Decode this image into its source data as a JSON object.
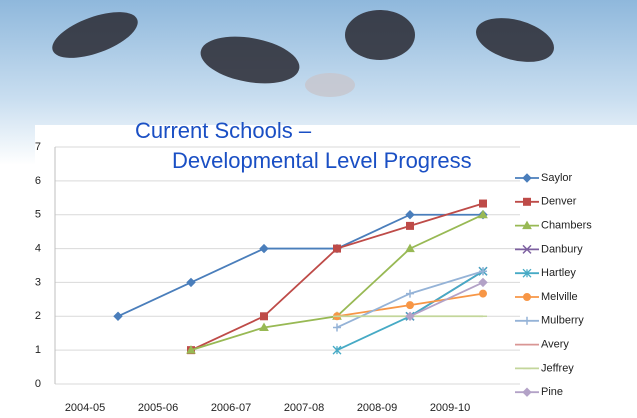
{
  "chart_data": {
    "type": "line",
    "title": [
      "Current Schools –",
      "Developmental Level Progress"
    ],
    "categories": [
      "2004-05",
      "2005-06",
      "2006-07",
      "2007-08",
      "2008-09",
      "2009-10"
    ],
    "ylim": [
      0,
      7
    ],
    "yticks": [
      0,
      1,
      2,
      3,
      4,
      5,
      6,
      7
    ],
    "grid": true,
    "legend": "right",
    "series": [
      {
        "name": "Saylor",
        "color": "#4a7ebb",
        "marker": "diamond",
        "values": [
          2,
          3,
          4,
          4,
          5,
          5
        ]
      },
      {
        "name": "Denver",
        "color": "#be4b48",
        "marker": "square",
        "values": [
          null,
          1,
          2,
          4,
          4.67,
          5.33
        ]
      },
      {
        "name": "Chambers",
        "color": "#98b954",
        "marker": "triangle",
        "values": [
          null,
          1,
          1.67,
          2,
          4,
          5
        ]
      },
      {
        "name": "Danbury",
        "color": "#7d60a0",
        "marker": "x",
        "values": [
          null,
          null,
          null,
          null,
          2,
          3.33
        ]
      },
      {
        "name": "Hartley",
        "color": "#46aac5",
        "marker": "star",
        "values": [
          null,
          null,
          null,
          1,
          2,
          3.33
        ]
      },
      {
        "name": "Melville",
        "color": "#f79646",
        "marker": "circle",
        "values": [
          null,
          null,
          null,
          2,
          2.33,
          2.67
        ]
      },
      {
        "name": "Mulberry",
        "color": "#95b3d7",
        "marker": "plus",
        "values": [
          null,
          null,
          null,
          1.67,
          2.67,
          3.33
        ]
      },
      {
        "name": "Avery",
        "color": "#d99694",
        "marker": "none",
        "values": [
          null,
          null,
          null,
          null,
          null,
          null
        ]
      },
      {
        "name": "Jeffrey",
        "color": "#c3d69b",
        "marker": "dash",
        "values": [
          null,
          null,
          null,
          2,
          2,
          2
        ]
      },
      {
        "name": "Pine",
        "color": "#b3a2c7",
        "marker": "diamond",
        "values": [
          null,
          null,
          null,
          null,
          2,
          3
        ]
      }
    ]
  }
}
